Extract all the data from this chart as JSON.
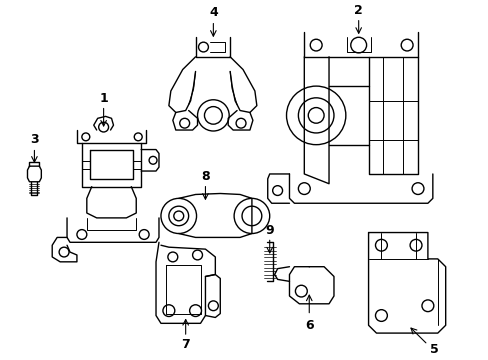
{
  "background_color": "#ffffff",
  "line_color": "#000000",
  "line_width": 1.0,
  "fig_width": 4.89,
  "fig_height": 3.6,
  "dpi": 100
}
